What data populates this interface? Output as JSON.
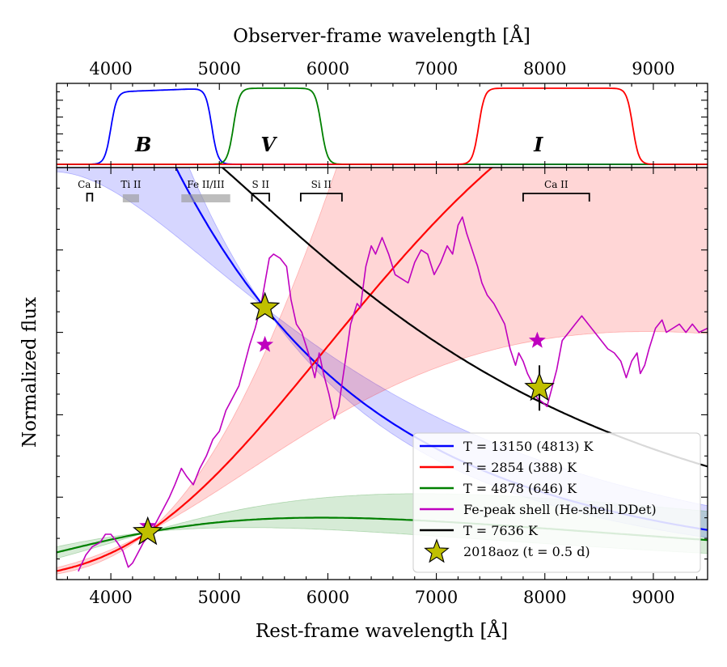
{
  "chart_data": {
    "type": "line",
    "top_axis_label": "Observer-frame wavelength [Å]",
    "top_ticks": [
      4000,
      5000,
      6000,
      7000,
      8000,
      9000
    ],
    "top_tick_labels": [
      "4000",
      "5000",
      "6000",
      "7000",
      "8000",
      "9000"
    ],
    "xlabel": "Rest-frame wavelength [Å]",
    "ylabel": "Normalized flux",
    "xlim": [
      3500,
      9500
    ],
    "ylim": [
      0,
      1
    ],
    "x_ticks": [
      4000,
      5000,
      6000,
      7000,
      8000,
      9000
    ],
    "x_tick_labels": [
      "4000",
      "5000",
      "6000",
      "7000",
      "8000",
      "9000"
    ],
    "filter_panel": {
      "filters": [
        {
          "name": "B",
          "label": "B",
          "color": "#0000ff",
          "label_x": 4300
        },
        {
          "name": "V",
          "label": "V",
          "color": "#008000",
          "label_x": 5450
        },
        {
          "name": "I",
          "label": "I",
          "color": "#ff0000",
          "label_x": 7940
        }
      ]
    },
    "line_markers": [
      {
        "label": "Ca II",
        "kind": "bracket",
        "x0": 3780,
        "x1": 3830
      },
      {
        "label": "Ti II",
        "kind": "band",
        "x0": 4110,
        "x1": 4260
      },
      {
        "label": "Fe II/III",
        "kind": "band",
        "x0": 4650,
        "x1": 5100
      },
      {
        "label": "S II",
        "kind": "bracket",
        "x0": 5300,
        "x1": 5460
      },
      {
        "label": "Si II",
        "kind": "bracket",
        "x0": 5750,
        "x1": 6130
      },
      {
        "label": "Ca II",
        "kind": "bracket",
        "x0": 7800,
        "x1": 8410
      }
    ],
    "series": [
      {
        "name": "T = 13150 (4813) K",
        "color": "#0000ff",
        "temperature": 13150,
        "temperature_err": 4813
      },
      {
        "name": "T = 2854 (388) K",
        "color": "#ff0000",
        "temperature": 2854,
        "temperature_err": 388
      },
      {
        "name": "T = 4878 (646) K",
        "color": "#008000",
        "temperature": 4878,
        "temperature_err": 646
      },
      {
        "name": "Fe-peak shell (He-shell DDet)",
        "color": "#bf00bf",
        "kind": "spectrum",
        "points": [
          [
            3700,
            0.02
          ],
          [
            3770,
            0.06
          ],
          [
            3830,
            0.08
          ],
          [
            3900,
            0.09
          ],
          [
            3950,
            0.11
          ],
          [
            4000,
            0.11
          ],
          [
            4060,
            0.09
          ],
          [
            4110,
            0.07
          ],
          [
            4160,
            0.03
          ],
          [
            4200,
            0.04
          ],
          [
            4260,
            0.07
          ],
          [
            4300,
            0.09
          ],
          [
            4360,
            0.11
          ],
          [
            4420,
            0.14
          ],
          [
            4480,
            0.17
          ],
          [
            4540,
            0.2
          ],
          [
            4590,
            0.23
          ],
          [
            4650,
            0.27
          ],
          [
            4700,
            0.25
          ],
          [
            4760,
            0.23
          ],
          [
            4820,
            0.27
          ],
          [
            4880,
            0.3
          ],
          [
            4940,
            0.34
          ],
          [
            5000,
            0.36
          ],
          [
            5060,
            0.41
          ],
          [
            5120,
            0.44
          ],
          [
            5180,
            0.47
          ],
          [
            5230,
            0.52
          ],
          [
            5280,
            0.57
          ],
          [
            5330,
            0.61
          ],
          [
            5380,
            0.66
          ],
          [
            5420,
            0.72
          ],
          [
            5460,
            0.78
          ],
          [
            5500,
            0.79
          ],
          [
            5560,
            0.78
          ],
          [
            5620,
            0.76
          ],
          [
            5660,
            0.68
          ],
          [
            5710,
            0.62
          ],
          [
            5760,
            0.6
          ],
          [
            5820,
            0.55
          ],
          [
            5880,
            0.49
          ],
          [
            5920,
            0.55
          ],
          [
            5960,
            0.5
          ],
          [
            6010,
            0.45
          ],
          [
            6060,
            0.39
          ],
          [
            6100,
            0.42
          ],
          [
            6150,
            0.51
          ],
          [
            6210,
            0.62
          ],
          [
            6270,
            0.67
          ],
          [
            6300,
            0.66
          ],
          [
            6350,
            0.76
          ],
          [
            6400,
            0.81
          ],
          [
            6440,
            0.79
          ],
          [
            6500,
            0.83
          ],
          [
            6560,
            0.79
          ],
          [
            6620,
            0.74
          ],
          [
            6680,
            0.73
          ],
          [
            6740,
            0.72
          ],
          [
            6800,
            0.77
          ],
          [
            6860,
            0.8
          ],
          [
            6920,
            0.79
          ],
          [
            6980,
            0.74
          ],
          [
            7040,
            0.77
          ],
          [
            7100,
            0.81
          ],
          [
            7150,
            0.79
          ],
          [
            7200,
            0.86
          ],
          [
            7240,
            0.88
          ],
          [
            7280,
            0.84
          ],
          [
            7330,
            0.8
          ],
          [
            7380,
            0.76
          ],
          [
            7420,
            0.72
          ],
          [
            7470,
            0.69
          ],
          [
            7530,
            0.67
          ],
          [
            7570,
            0.65
          ],
          [
            7630,
            0.62
          ],
          [
            7680,
            0.56
          ],
          [
            7730,
            0.52
          ],
          [
            7760,
            0.55
          ],
          [
            7800,
            0.53
          ],
          [
            7840,
            0.5
          ],
          [
            7880,
            0.48
          ],
          [
            7930,
            0.44
          ],
          [
            7980,
            0.43
          ],
          [
            8020,
            0.42
          ],
          [
            8060,
            0.46
          ],
          [
            8110,
            0.51
          ],
          [
            8160,
            0.58
          ],
          [
            8220,
            0.6
          ],
          [
            8280,
            0.62
          ],
          [
            8340,
            0.64
          ],
          [
            8400,
            0.62
          ],
          [
            8460,
            0.6
          ],
          [
            8520,
            0.58
          ],
          [
            8580,
            0.56
          ],
          [
            8640,
            0.55
          ],
          [
            8700,
            0.53
          ],
          [
            8750,
            0.49
          ],
          [
            8800,
            0.53
          ],
          [
            8850,
            0.55
          ],
          [
            8880,
            0.5
          ],
          [
            8920,
            0.52
          ],
          [
            8960,
            0.56
          ],
          [
            9020,
            0.61
          ],
          [
            9080,
            0.63
          ],
          [
            9120,
            0.6
          ],
          [
            9180,
            0.61
          ],
          [
            9240,
            0.62
          ],
          [
            9300,
            0.6
          ],
          [
            9360,
            0.62
          ],
          [
            9420,
            0.6
          ],
          [
            9500,
            0.61
          ]
        ]
      },
      {
        "name": "T = 7636 K",
        "color": "#000000",
        "temperature": 7636
      },
      {
        "name": "2018aoz (t = 0.5 d)",
        "color": "#bfbf00",
        "kind": "photometry",
        "points": [
          {
            "x": 4340,
            "y": 0.115,
            "band": "B"
          },
          {
            "x": 5420,
            "y": 0.66,
            "band": "V"
          },
          {
            "x": 7950,
            "y": 0.465,
            "band": "I",
            "yerr": 0.055
          }
        ]
      }
    ],
    "synthetic_photometry": [
      {
        "x": 4340,
        "y": 0.13
      },
      {
        "x": 5420,
        "y": 0.57
      },
      {
        "x": 7930,
        "y": 0.58
      }
    ],
    "legend_location": "lower right"
  }
}
